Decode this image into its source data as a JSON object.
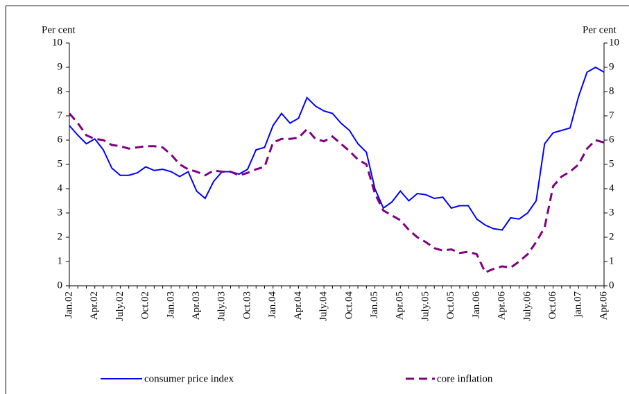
{
  "chart_data": {
    "type": "line",
    "y_label": "Per cent",
    "y2_label": "Per cent",
    "categories": [
      "Jan.02",
      null,
      null,
      "Apr.02",
      null,
      null,
      "July.02",
      null,
      null,
      "Oct.02",
      null,
      null,
      "Jan.03",
      null,
      null,
      "Apr.03",
      null,
      null,
      "July.03",
      null,
      null,
      "Oct.03",
      null,
      null,
      "Jan.04",
      null,
      null,
      "Apr.04",
      null,
      null,
      "July.04",
      null,
      null,
      "Oct.04",
      null,
      null,
      "Jan.05",
      null,
      null,
      "Apr.05",
      null,
      null,
      "July.05",
      null,
      null,
      "Oct.05",
      null,
      null,
      "Jan.06",
      null,
      null,
      "Apr.06",
      null,
      null,
      "July.06",
      null,
      null,
      "Oct.06",
      null,
      null,
      "jan.07",
      null,
      null,
      "Apr.06"
    ],
    "series": [
      {
        "name": "consumer price index",
        "color": "#0000ff",
        "dash": false,
        "values": [
          6.6,
          6.2,
          5.85,
          6.05,
          5.6,
          4.85,
          4.55,
          4.55,
          4.65,
          4.9,
          4.75,
          4.8,
          4.7,
          4.5,
          4.7,
          3.9,
          3.6,
          4.3,
          4.7,
          4.7,
          4.6,
          4.8,
          5.6,
          5.7,
          6.6,
          7.1,
          6.7,
          6.9,
          7.75,
          7.4,
          7.2,
          7.1,
          6.7,
          6.4,
          5.85,
          5.5,
          4.0,
          3.2,
          3.45,
          3.9,
          3.5,
          3.8,
          3.75,
          3.6,
          3.65,
          3.2,
          3.3,
          3.3,
          2.75,
          2.5,
          2.35,
          2.3,
          2.8,
          2.75,
          3.0,
          3.5,
          5.85,
          6.3,
          6.4,
          6.5,
          7.8,
          8.8,
          9.0,
          8.8
        ]
      },
      {
        "name": "core inflation",
        "color": "#800080",
        "dash": true,
        "values": [
          7.1,
          6.7,
          6.2,
          6.05,
          6.0,
          5.8,
          5.75,
          5.65,
          5.7,
          5.75,
          5.75,
          5.7,
          5.4,
          5.0,
          4.8,
          4.7,
          4.55,
          4.75,
          4.7,
          4.7,
          4.55,
          4.65,
          4.8,
          4.9,
          5.9,
          6.05,
          6.05,
          6.1,
          6.45,
          6.05,
          5.95,
          6.15,
          5.85,
          5.55,
          5.2,
          5.0,
          3.8,
          3.1,
          2.9,
          2.7,
          2.3,
          2.0,
          1.8,
          1.55,
          1.45,
          1.5,
          1.35,
          1.4,
          1.3,
          0.55,
          0.7,
          0.8,
          0.75,
          1.0,
          1.3,
          1.8,
          2.4,
          4.1,
          4.5,
          4.7,
          5.0,
          5.65,
          6.0,
          5.9
        ]
      }
    ],
    "ylim": [
      0,
      10
    ],
    "yticks": [
      0,
      1,
      2,
      3,
      4,
      5,
      6,
      7,
      8,
      9,
      10
    ],
    "y2lim": [
      0,
      10
    ],
    "y2ticks": [
      0,
      1,
      2,
      3,
      4,
      5,
      6,
      7,
      8,
      9,
      10
    ],
    "grid": false
  }
}
